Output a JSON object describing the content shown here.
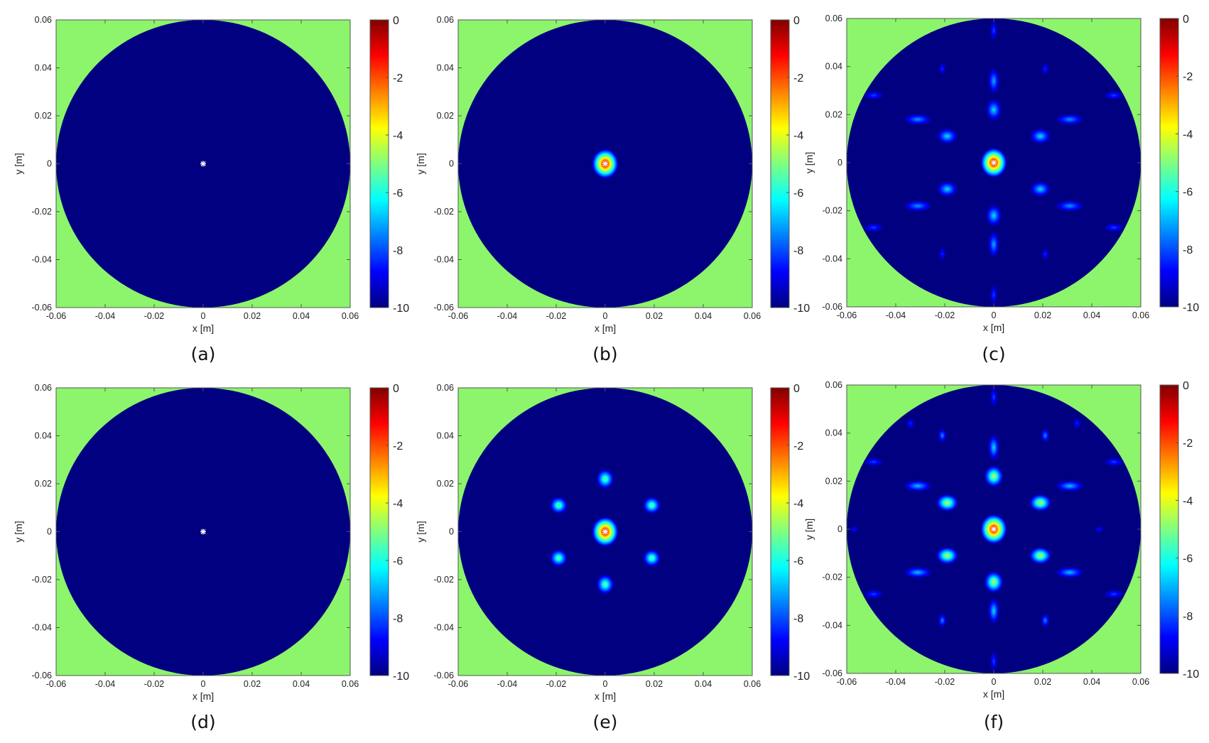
{
  "colors": {
    "outside_region": "#8cf56b",
    "colormap": [
      "#000080",
      "#0000ff",
      "#0080ff",
      "#00ffff",
      "#80ff80",
      "#ffff00",
      "#ff8000",
      "#ff0000",
      "#800000"
    ]
  },
  "chart_data": [
    {
      "type": "heatmap",
      "panel": "(a)",
      "xlabel": "x [m]",
      "ylabel": "y [m]",
      "xlim": [
        -0.06,
        0.06
      ],
      "ylim": [
        -0.06,
        0.06
      ],
      "xticks": [
        "-0.06",
        "-0.04",
        "-0.02",
        "0",
        "0.02",
        "0.04",
        "0.06"
      ],
      "yticks": [
        "-0.06",
        "-0.04",
        "-0.02",
        "0",
        "0.02",
        "0.04",
        "0.06"
      ],
      "colorbar": {
        "min": -10,
        "max": 0,
        "ticks": [
          "0",
          "-2",
          "-4",
          "-6",
          "-8",
          "-10"
        ]
      },
      "domain_radius": 0.06,
      "source_marker": [
        0,
        0
      ],
      "spots": []
    },
    {
      "type": "heatmap",
      "panel": "(b)",
      "xlabel": "x [m]",
      "ylabel": "y [m]",
      "xlim": [
        -0.06,
        0.06
      ],
      "ylim": [
        -0.06,
        0.06
      ],
      "xticks": [
        "-0.06",
        "-0.04",
        "-0.02",
        "0",
        "0.02",
        "0.04",
        "0.06"
      ],
      "yticks": [
        "-0.06",
        "-0.04",
        "-0.02",
        "0",
        "0.02",
        "0.04",
        "0.06"
      ],
      "colorbar": {
        "min": -10,
        "max": 0,
        "ticks": [
          "0",
          "-2",
          "-4",
          "-6",
          "-8",
          "-10"
        ]
      },
      "domain_radius": 0.06,
      "source_marker": [
        0,
        0
      ],
      "spots": [
        {
          "x": 0,
          "y": 0,
          "rx": 0.0042,
          "ry": 0.0048,
          "peak": 0
        }
      ]
    },
    {
      "type": "heatmap",
      "panel": "(c)",
      "xlabel": "x [m]",
      "ylabel": "y [m]",
      "xlim": [
        -0.06,
        0.06
      ],
      "ylim": [
        -0.06,
        0.06
      ],
      "xticks": [
        "-0.06",
        "-0.04",
        "-0.02",
        "0",
        "0.02",
        "0.04",
        "0.06"
      ],
      "yticks": [
        "-0.06",
        "-0.04",
        "-0.02",
        "0",
        "0.02",
        "0.04",
        "0.06"
      ],
      "colorbar": {
        "min": -10,
        "max": 0,
        "ticks": [
          "0",
          "-2",
          "-4",
          "-6",
          "-8",
          "-10"
        ]
      },
      "domain_radius": 0.06,
      "source_marker": [
        0,
        0
      ],
      "spots": [
        {
          "x": 0,
          "y": 0,
          "rx": 0.0042,
          "ry": 0.0048,
          "peak": 0
        },
        {
          "x": 0,
          "y": 0.022,
          "rx": 0.0025,
          "ry": 0.0035,
          "peak": -6.5
        },
        {
          "x": 0,
          "y": -0.022,
          "rx": 0.0025,
          "ry": 0.0035,
          "peak": -6.5
        },
        {
          "x": 0.019,
          "y": 0.011,
          "rx": 0.0033,
          "ry": 0.0025,
          "peak": -6.5
        },
        {
          "x": -0.019,
          "y": 0.011,
          "rx": 0.0033,
          "ry": 0.0025,
          "peak": -6.5
        },
        {
          "x": 0.019,
          "y": -0.011,
          "rx": 0.0033,
          "ry": 0.0025,
          "peak": -6.5
        },
        {
          "x": -0.019,
          "y": -0.011,
          "rx": 0.0033,
          "ry": 0.0025,
          "peak": -6.5
        },
        {
          "x": 0,
          "y": 0.034,
          "rx": 0.0018,
          "ry": 0.0042,
          "peak": -7
        },
        {
          "x": 0,
          "y": -0.034,
          "rx": 0.0018,
          "ry": 0.0042,
          "peak": -7
        },
        {
          "x": 0.031,
          "y": 0.018,
          "rx": 0.0045,
          "ry": 0.0018,
          "peak": -7.2
        },
        {
          "x": -0.031,
          "y": 0.018,
          "rx": 0.0045,
          "ry": 0.0018,
          "peak": -7.2
        },
        {
          "x": 0.031,
          "y": -0.018,
          "rx": 0.0045,
          "ry": 0.0018,
          "peak": -7.2
        },
        {
          "x": -0.031,
          "y": -0.018,
          "rx": 0.0045,
          "ry": 0.0018,
          "peak": -7.2
        },
        {
          "x": 0.021,
          "y": 0.039,
          "rx": 0.0012,
          "ry": 0.002,
          "peak": -8.3
        },
        {
          "x": -0.021,
          "y": 0.039,
          "rx": 0.0012,
          "ry": 0.002,
          "peak": -8.3
        },
        {
          "x": 0.021,
          "y": -0.038,
          "rx": 0.0012,
          "ry": 0.002,
          "peak": -8.3
        },
        {
          "x": -0.021,
          "y": -0.038,
          "rx": 0.0012,
          "ry": 0.002,
          "peak": -8.3
        },
        {
          "x": 0.049,
          "y": 0.028,
          "rx": 0.0032,
          "ry": 0.0014,
          "peak": -8
        },
        {
          "x": -0.049,
          "y": 0.028,
          "rx": 0.0032,
          "ry": 0.0014,
          "peak": -8
        },
        {
          "x": 0.049,
          "y": -0.027,
          "rx": 0.0032,
          "ry": 0.0014,
          "peak": -8
        },
        {
          "x": -0.049,
          "y": -0.027,
          "rx": 0.0032,
          "ry": 0.0014,
          "peak": -8
        },
        {
          "x": 0,
          "y": 0.055,
          "rx": 0.0012,
          "ry": 0.0032,
          "peak": -8
        },
        {
          "x": 0,
          "y": -0.055,
          "rx": 0.0012,
          "ry": 0.0032,
          "peak": -8
        }
      ]
    },
    {
      "type": "heatmap",
      "panel": "(d)",
      "xlabel": "x [m]",
      "ylabel": "y [m]",
      "xlim": [
        -0.06,
        0.06
      ],
      "ylim": [
        -0.06,
        0.06
      ],
      "xticks": [
        "-0.06",
        "-0.04",
        "-0.02",
        "0",
        "0.02",
        "0.04",
        "0.06"
      ],
      "yticks": [
        "-0.06",
        "-0.04",
        "-0.02",
        "0",
        "0.02",
        "0.04",
        "0.06"
      ],
      "colorbar": {
        "min": -10,
        "max": 0,
        "ticks": [
          "0",
          "-2",
          "-4",
          "-6",
          "-8",
          "-10"
        ]
      },
      "domain_radius": 0.06,
      "source_marker": [
        0,
        0
      ],
      "spots": []
    },
    {
      "type": "heatmap",
      "panel": "(e)",
      "xlabel": "x [m]",
      "ylabel": "y [m]",
      "xlim": [
        -0.06,
        0.06
      ],
      "ylim": [
        -0.06,
        0.06
      ],
      "xticks": [
        "-0.06",
        "-0.04",
        "-0.02",
        "0",
        "0.02",
        "0.04",
        "0.06"
      ],
      "yticks": [
        "-0.06",
        "-0.04",
        "-0.02",
        "0",
        "0.02",
        "0.04",
        "0.06"
      ],
      "colorbar": {
        "min": -10,
        "max": 0,
        "ticks": [
          "0",
          "-2",
          "-4",
          "-6",
          "-8",
          "-10"
        ]
      },
      "domain_radius": 0.06,
      "source_marker": [
        0,
        0
      ],
      "spots": [
        {
          "x": 0,
          "y": 0,
          "rx": 0.0042,
          "ry": 0.0048,
          "peak": 0
        },
        {
          "x": 0,
          "y": 0.022,
          "rx": 0.0028,
          "ry": 0.0032,
          "peak": -5
        },
        {
          "x": 0,
          "y": -0.022,
          "rx": 0.0028,
          "ry": 0.0032,
          "peak": -5
        },
        {
          "x": 0.019,
          "y": 0.011,
          "rx": 0.0028,
          "ry": 0.0028,
          "peak": -5
        },
        {
          "x": -0.019,
          "y": 0.011,
          "rx": 0.0028,
          "ry": 0.0028,
          "peak": -5
        },
        {
          "x": 0.019,
          "y": -0.011,
          "rx": 0.0028,
          "ry": 0.0028,
          "peak": -5
        },
        {
          "x": -0.019,
          "y": -0.011,
          "rx": 0.0028,
          "ry": 0.0028,
          "peak": -5
        }
      ]
    },
    {
      "type": "heatmap",
      "panel": "(f)",
      "xlabel": "x [m]",
      "ylabel": "y [m]",
      "xlim": [
        -0.06,
        0.06
      ],
      "ylim": [
        -0.06,
        0.06
      ],
      "xticks": [
        "-0.06",
        "-0.04",
        "-0.02",
        "0",
        "0.02",
        "0.04",
        "0.06"
      ],
      "yticks": [
        "-0.06",
        "-0.04",
        "-0.02",
        "0",
        "0.02",
        "0.04",
        "0.06"
      ],
      "colorbar": {
        "min": -10,
        "max": 0,
        "ticks": [
          "0",
          "-2",
          "-4",
          "-6",
          "-8",
          "-10"
        ]
      },
      "domain_radius": 0.06,
      "source_marker": [
        0,
        0
      ],
      "spots": [
        {
          "x": 0,
          "y": 0,
          "rx": 0.0042,
          "ry": 0.0048,
          "peak": 0
        },
        {
          "x": 0,
          "y": 0.022,
          "rx": 0.003,
          "ry": 0.0035,
          "peak": -4.2
        },
        {
          "x": 0,
          "y": -0.022,
          "rx": 0.003,
          "ry": 0.0035,
          "peak": -4.2
        },
        {
          "x": 0.019,
          "y": 0.011,
          "rx": 0.0035,
          "ry": 0.0028,
          "peak": -4.2
        },
        {
          "x": -0.019,
          "y": 0.011,
          "rx": 0.0035,
          "ry": 0.0028,
          "peak": -4.2
        },
        {
          "x": 0.019,
          "y": -0.011,
          "rx": 0.0035,
          "ry": 0.0028,
          "peak": -4.2
        },
        {
          "x": -0.019,
          "y": -0.011,
          "rx": 0.0035,
          "ry": 0.0028,
          "peak": -4.2
        },
        {
          "x": 0,
          "y": 0.034,
          "rx": 0.0018,
          "ry": 0.0042,
          "peak": -6.5
        },
        {
          "x": 0,
          "y": -0.034,
          "rx": 0.0018,
          "ry": 0.0042,
          "peak": -6.5
        },
        {
          "x": 0.031,
          "y": 0.018,
          "rx": 0.0045,
          "ry": 0.0018,
          "peak": -6.8
        },
        {
          "x": -0.031,
          "y": 0.018,
          "rx": 0.0045,
          "ry": 0.0018,
          "peak": -6.8
        },
        {
          "x": 0.031,
          "y": -0.018,
          "rx": 0.0045,
          "ry": 0.0018,
          "peak": -6.8
        },
        {
          "x": -0.031,
          "y": -0.018,
          "rx": 0.0045,
          "ry": 0.0018,
          "peak": -6.8
        },
        {
          "x": 0.021,
          "y": 0.039,
          "rx": 0.0014,
          "ry": 0.0022,
          "peak": -7.3
        },
        {
          "x": -0.021,
          "y": 0.039,
          "rx": 0.0014,
          "ry": 0.0022,
          "peak": -7.3
        },
        {
          "x": 0.021,
          "y": -0.038,
          "rx": 0.0014,
          "ry": 0.0022,
          "peak": -7.3
        },
        {
          "x": -0.021,
          "y": -0.038,
          "rx": 0.0014,
          "ry": 0.0022,
          "peak": -7.3
        },
        {
          "x": 0.034,
          "y": 0.044,
          "rx": 0.0014,
          "ry": 0.0018,
          "peak": -8.3
        },
        {
          "x": -0.034,
          "y": 0.044,
          "rx": 0.0014,
          "ry": 0.0018,
          "peak": -8.3
        },
        {
          "x": 0.049,
          "y": 0.028,
          "rx": 0.0032,
          "ry": 0.0014,
          "peak": -8
        },
        {
          "x": -0.049,
          "y": 0.028,
          "rx": 0.0032,
          "ry": 0.0014,
          "peak": -8
        },
        {
          "x": 0.049,
          "y": -0.027,
          "rx": 0.0032,
          "ry": 0.0014,
          "peak": -8
        },
        {
          "x": -0.049,
          "y": -0.027,
          "rx": 0.0032,
          "ry": 0.0014,
          "peak": -8
        },
        {
          "x": 0,
          "y": 0.055,
          "rx": 0.0012,
          "ry": 0.0032,
          "peak": -8
        },
        {
          "x": 0,
          "y": -0.055,
          "rx": 0.0012,
          "ry": 0.0032,
          "peak": -8
        },
        {
          "x": 0.043,
          "y": 0,
          "rx": 0.0015,
          "ry": 0.0012,
          "peak": -8.6
        },
        {
          "x": -0.057,
          "y": 0,
          "rx": 0.0015,
          "ry": 0.0012,
          "peak": -8.6
        }
      ]
    }
  ]
}
